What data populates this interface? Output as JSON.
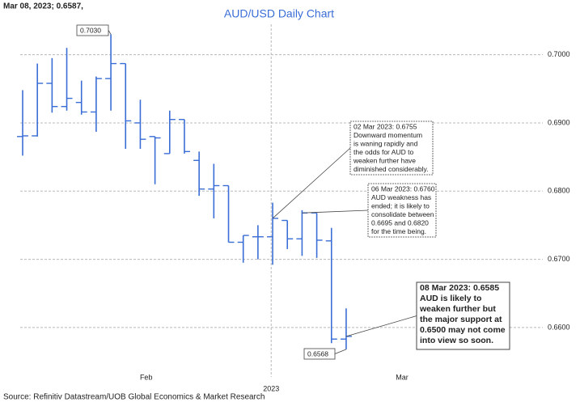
{
  "chart_data": {
    "type": "ohlc",
    "header": "Mar 08, 2023; 0.6587,",
    "title": "AUD/USD Daily Chart",
    "source": "Source: Refinitiv Datastream/UOB Global Economics & Market Research",
    "color": "#3a6ed6",
    "x": [
      0,
      1,
      2,
      3,
      4,
      5,
      6,
      7,
      8,
      9,
      10,
      11,
      12,
      13,
      14,
      15,
      16,
      17,
      18,
      19,
      20,
      21,
      22
    ],
    "open": [
      0.688,
      0.6881,
      0.6958,
      0.6924,
      0.693,
      0.6916,
      0.6965,
      0.6987,
      0.69,
      0.688,
      0.6855,
      0.6905,
      0.6845,
      0.6803,
      0.6808,
      0.6725,
      0.6733,
      0.6733,
      0.6757,
      0.673,
      0.6768,
      0.6727,
      0.6583
    ],
    "high": [
      0.6948,
      0.6987,
      0.6995,
      0.701,
      0.6962,
      0.6968,
      0.703,
      0.6987,
      0.6934,
      0.688,
      0.6918,
      0.6905,
      0.6858,
      0.684,
      0.6808,
      0.6735,
      0.675,
      0.6783,
      0.6757,
      0.6772,
      0.6768,
      0.6746,
      0.6628
    ],
    "low": [
      0.6852,
      0.688,
      0.6915,
      0.6918,
      0.6912,
      0.6887,
      0.6918,
      0.6862,
      0.6862,
      0.681,
      0.6855,
      0.6855,
      0.6793,
      0.676,
      0.6725,
      0.6695,
      0.67,
      0.6692,
      0.6715,
      0.6705,
      0.6702,
      0.6577,
      0.6568
    ],
    "close": [
      0.6881,
      0.6958,
      0.6924,
      0.6936,
      0.6916,
      0.6965,
      0.6987,
      0.6903,
      0.6876,
      0.6878,
      0.6905,
      0.6858,
      0.6803,
      0.6808,
      0.6725,
      0.6735,
      0.6733,
      0.676,
      0.673,
      0.6768,
      0.6728,
      0.6583,
      0.6587
    ],
    "xlim": [
      -0.165,
      35.04
    ],
    "xticks": [
      {
        "value": 8.4,
        "label": "Feb"
      },
      {
        "value": 25.8,
        "label": "Mar"
      }
    ],
    "year_ticks": [
      {
        "value": 16.9,
        "label": "2023"
      }
    ],
    "ylim": [
      0.6537,
      0.7047
    ],
    "yticks": [
      {
        "value": 0.66,
        "label": "0.6600"
      },
      {
        "value": 0.67,
        "label": "0.6700"
      },
      {
        "value": 0.68,
        "label": "0.6800"
      },
      {
        "value": 0.69,
        "label": "0.6900"
      },
      {
        "value": 0.7,
        "label": "0.7000"
      }
    ],
    "grid": true,
    "annotations": [
      {
        "lines": [
          "0.7030"
        ]
      },
      {
        "lines": [
          "0.6568"
        ]
      },
      {
        "lines": [
          "02 Mar 2023: 0.6755",
          "Downward momentum",
          "is waning rapidly and",
          "the odds for AUD to",
          "weaken further have",
          "diminished considerably."
        ]
      },
      {
        "lines": [
          "06 Mar 2023: 0.6760",
          "AUD weakness has",
          "ended; it is likely to",
          "consolidate between",
          "0.6695 and 0.6820",
          "for the time being."
        ]
      },
      {
        "lines": [
          "08 Mar 2023: 0.6585",
          "AUD is likely to",
          "weaken further but",
          "the major support at",
          "0.6500 may not come",
          "into view so soon."
        ]
      }
    ]
  }
}
